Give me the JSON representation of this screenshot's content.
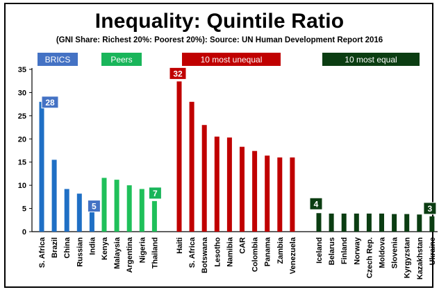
{
  "chart_data": {
    "type": "bar",
    "title": "Inequality: Quintile Ratio",
    "subtitle": "(GNI Share: Richest 20%: Poorest 20%):  Source: UN Human Development Report 2016",
    "ylim": [
      0,
      35
    ],
    "yticks": [
      0,
      5,
      10,
      15,
      20,
      25,
      30,
      35
    ],
    "grid": false,
    "groups": [
      {
        "label": "BRICS",
        "color": "#1f6fc5",
        "label_bg": "#4472c4",
        "categories": [
          "S. Africa",
          "Brazil",
          "China",
          "Russian",
          "India"
        ],
        "values": [
          28,
          15.5,
          9.2,
          8.2,
          5.3
        ]
      },
      {
        "label": "Peers",
        "color": "#1fc05a",
        "label_bg": "#19b55a",
        "categories": [
          "Kenya",
          "Malaysia",
          "Argentina",
          "Nigeria",
          "Thailand"
        ],
        "values": [
          11.6,
          11.2,
          10.0,
          9.2,
          6.6
        ]
      },
      {
        "label": "10 most unequal",
        "color": "#c00000",
        "label_bg": "#c00000",
        "categories": [
          "Haiti",
          "S. Africa",
          "Botswana",
          "Lesotho",
          "Namibia",
          "CAR",
          "Colombia",
          "Panama",
          "Zambia",
          "Venezuela"
        ],
        "values": [
          32.4,
          28.0,
          23.0,
          20.5,
          20.3,
          18.3,
          17.4,
          16.4,
          16.0,
          16.0
        ]
      },
      {
        "label": "10 most equal",
        "color": "#0b3d12",
        "label_bg": "#0b3d12",
        "categories": [
          "Iceland",
          "Belarus",
          "Finland",
          "Norway",
          "Czech Rep.",
          "Moldova",
          "Slovenia",
          "Kyrgyzstan",
          "Kazakhstan",
          "Ukraine"
        ],
        "values": [
          4.0,
          3.9,
          3.9,
          3.9,
          3.9,
          3.9,
          3.8,
          3.8,
          3.7,
          3.3
        ]
      }
    ],
    "annotations": [
      {
        "text": "28",
        "group": 0,
        "index": 0
      },
      {
        "text": "5",
        "group": 0,
        "index": 4
      },
      {
        "text": "7",
        "group": 1,
        "index": 4
      },
      {
        "text": "32",
        "group": 2,
        "index": 0
      },
      {
        "text": "4",
        "group": 3,
        "index": 0
      },
      {
        "text": "3",
        "group": 3,
        "index": 9
      }
    ]
  }
}
